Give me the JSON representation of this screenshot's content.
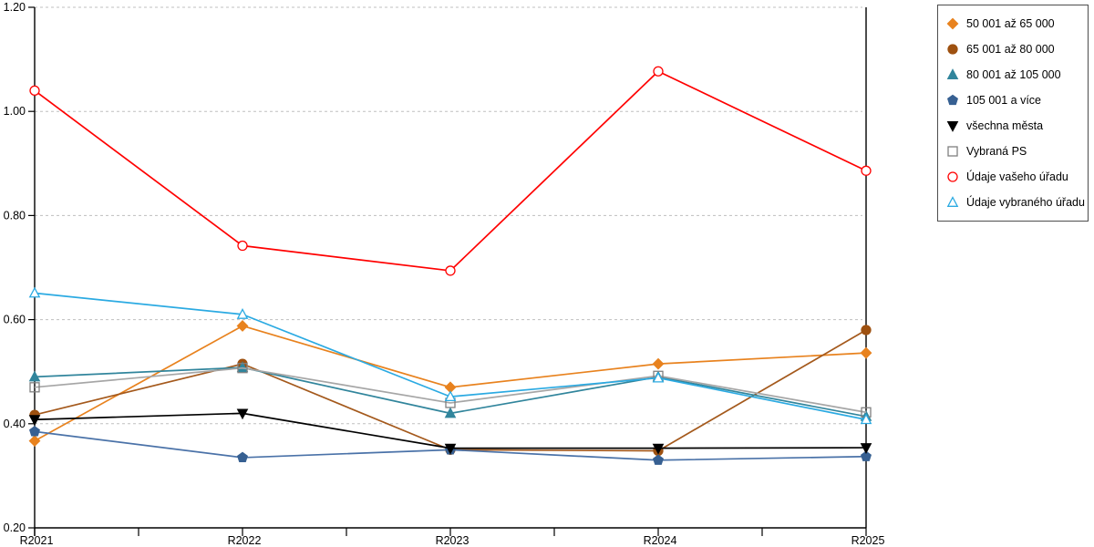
{
  "chart_data": {
    "type": "line",
    "categories": [
      "R2021",
      "R2022",
      "R2023",
      "R2024",
      "R2025"
    ],
    "series": [
      {
        "name": "50 001 až 65 000",
        "marker": "diamond",
        "filled": true,
        "color": "#E8821E",
        "line_color": "#E8821E",
        "values": [
          0.367,
          0.588,
          0.47,
          0.515,
          0.536
        ]
      },
      {
        "name": "65 001 až 80 000",
        "marker": "circle",
        "filled": true,
        "color": "#9E5110",
        "line_color": "#A4591C",
        "values": [
          0.417,
          0.515,
          0.35,
          0.348,
          0.58
        ]
      },
      {
        "name": "80 001 až 105 000",
        "marker": "triangle-up",
        "filled": true,
        "color": "#31859C",
        "line_color": "#31859C",
        "values": [
          0.49,
          0.508,
          0.42,
          0.49,
          0.414
        ]
      },
      {
        "name": "105 001 a více",
        "marker": "pentagon",
        "filled": true,
        "color": "#376092",
        "line_color": "#4A72A8",
        "values": [
          0.385,
          0.335,
          0.35,
          0.33,
          0.337
        ]
      },
      {
        "name": "všechna města",
        "marker": "triangle-down",
        "filled": true,
        "color": "#000000",
        "line_color": "#000000",
        "values": [
          0.408,
          0.42,
          0.353,
          0.353,
          0.354
        ]
      },
      {
        "name": "Vybraná PS",
        "marker": "square",
        "filled": false,
        "color": "#7F7F7F",
        "line_color": "#A6A6A6",
        "values": [
          0.47,
          0.507,
          0.44,
          0.492,
          0.422
        ]
      },
      {
        "name": "Údaje vašeho úřadu",
        "marker": "circle",
        "filled": false,
        "color": "#FF0000",
        "line_color": "#FF0000",
        "values": [
          1.04,
          0.742,
          0.694,
          1.077,
          0.886
        ]
      },
      {
        "name": "Údaje vybraného úřadu",
        "marker": "triangle-up",
        "filled": false,
        "color": "#2BAAE2",
        "line_color": "#2BAAE2",
        "values": [
          0.651,
          0.61,
          0.452,
          0.488,
          0.408
        ]
      }
    ],
    "title": "",
    "xlabel": "",
    "ylabel": "",
    "ylim": [
      0.2,
      1.2
    ],
    "ytick_step": 0.2,
    "ytick_labels": [
      "0.20",
      "0.40",
      "0.60",
      "0.80",
      "1.00",
      "1.20"
    ],
    "grid": "horizontal-dashed",
    "grid_color": "#BFBFBF",
    "axis_color": "#000000",
    "legend_position": "top-right"
  }
}
